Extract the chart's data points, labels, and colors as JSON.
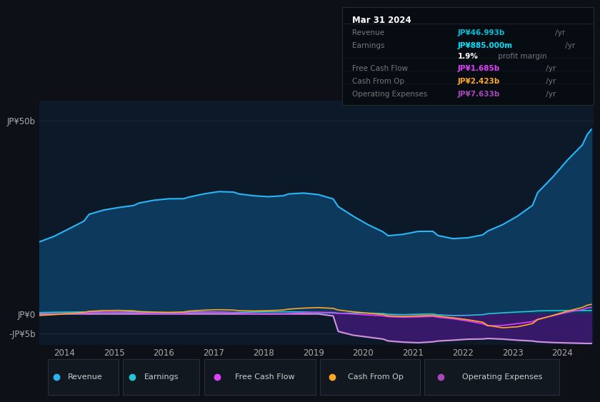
{
  "bg_color": "#0d1117",
  "plot_bg_color": "#0b1929",
  "title_box": {
    "date": "Mar 31 2024",
    "rows": [
      {
        "label": "Revenue",
        "value": "JP¥46.993b",
        "unit": " /yr",
        "value_color": "#00bcd4"
      },
      {
        "label": "Earnings",
        "value": "JP¥885.000m",
        "unit": " /yr",
        "value_color": "#00e5ff"
      },
      {
        "label": "",
        "value": "1.9%",
        "unit": " profit margin",
        "value_color": "#ffffff"
      },
      {
        "label": "Free Cash Flow",
        "value": "JP¥1.685b",
        "unit": " /yr",
        "value_color": "#e040fb"
      },
      {
        "label": "Cash From Op",
        "value": "JP¥2.423b",
        "unit": " /yr",
        "value_color": "#ffa726"
      },
      {
        "label": "Operating Expenses",
        "value": "JP¥7.633b",
        "unit": " /yr",
        "value_color": "#ab47bc"
      }
    ]
  },
  "legend": [
    {
      "label": "Revenue",
      "color": "#29b6f6"
    },
    {
      "label": "Earnings",
      "color": "#26c6da"
    },
    {
      "label": "Free Cash Flow",
      "color": "#e040fb"
    },
    {
      "label": "Cash From Op",
      "color": "#ffa726"
    },
    {
      "label": "Operating Expenses",
      "color": "#ab47bc"
    }
  ],
  "ylim": [
    -8,
    55
  ],
  "ytick_values": [
    50,
    0,
    -5
  ],
  "ytick_labels": [
    "JP¥50b",
    "JP¥0",
    "-JP¥5b"
  ],
  "xtick_positions": [
    2013.5,
    2014.5,
    2015.5,
    2016.5,
    2017.5,
    2018.5,
    2019.5,
    2020.5,
    2021.5,
    2022.5,
    2023.5
  ],
  "xtick_labels": [
    "2014",
    "2015",
    "2016",
    "2017",
    "2018",
    "2019",
    "2020",
    "2021",
    "2022",
    "2023",
    "2024"
  ],
  "series": {
    "x": [
      2013.0,
      2013.3,
      2013.6,
      2013.9,
      2014.0,
      2014.3,
      2014.6,
      2014.9,
      2015.0,
      2015.3,
      2015.6,
      2015.9,
      2016.0,
      2016.3,
      2016.6,
      2016.9,
      2017.0,
      2017.3,
      2017.6,
      2017.9,
      2018.0,
      2018.3,
      2018.6,
      2018.9,
      2019.0,
      2019.3,
      2019.6,
      2019.9,
      2020.0,
      2020.3,
      2020.6,
      2020.9,
      2021.0,
      2021.3,
      2021.6,
      2021.9,
      2022.0,
      2022.3,
      2022.6,
      2022.9,
      2023.0,
      2023.3,
      2023.6,
      2023.9,
      2024.0,
      2024.08
    ],
    "revenue": [
      18,
      20,
      22,
      24,
      26,
      27,
      27.5,
      28,
      28.5,
      29.5,
      30,
      29.5,
      30,
      31,
      32,
      31.5,
      31,
      30.5,
      30,
      30.5,
      31,
      31.5,
      31,
      30,
      28,
      25,
      23,
      21,
      19.5,
      20.5,
      21.5,
      22,
      20,
      19,
      19.5,
      20.5,
      21,
      23,
      25,
      28,
      31,
      35,
      40,
      44,
      47,
      48
    ],
    "earnings": [
      0.3,
      0.5,
      0.4,
      0.6,
      0.5,
      0.4,
      0.5,
      0.6,
      0.4,
      0.3,
      0.2,
      0.3,
      0.5,
      0.6,
      0.5,
      0.4,
      0.3,
      0.5,
      0.6,
      0.5,
      0.6,
      0.5,
      0.4,
      0.2,
      0.1,
      0.2,
      0.3,
      0.1,
      -0.1,
      -0.3,
      -0.1,
      0.2,
      -0.3,
      -0.5,
      -0.4,
      -0.2,
      0.0,
      0.3,
      0.5,
      0.7,
      0.8,
      0.85,
      0.87,
      0.88,
      0.885,
      0.9
    ],
    "free_cash_flow": [
      -0.3,
      -0.1,
      0.2,
      0.1,
      0.3,
      0.5,
      0.4,
      0.3,
      0.2,
      0.1,
      -0.1,
      0.1,
      0.3,
      0.4,
      0.5,
      0.3,
      0.2,
      0.0,
      -0.2,
      -0.1,
      0.1,
      0.3,
      0.5,
      0.4,
      0.2,
      0.0,
      -0.3,
      -0.5,
      -0.7,
      -1.0,
      -0.8,
      -0.5,
      -0.8,
      -1.2,
      -1.8,
      -2.5,
      -3.5,
      -3.0,
      -2.5,
      -2.0,
      -1.5,
      -0.5,
      0.5,
      1.2,
      1.685,
      1.7
    ],
    "cash_from_op": [
      -0.5,
      -0.2,
      0.1,
      0.4,
      0.7,
      0.9,
      1.0,
      0.8,
      0.6,
      0.5,
      0.3,
      0.5,
      0.7,
      1.0,
      1.2,
      1.0,
      0.8,
      0.7,
      0.8,
      1.0,
      1.2,
      1.5,
      1.8,
      1.5,
      1.0,
      0.5,
      0.2,
      -0.2,
      -0.5,
      -0.8,
      -0.5,
      -0.2,
      -0.5,
      -1.0,
      -1.5,
      -2.0,
      -3.0,
      -4.0,
      -3.5,
      -2.5,
      -1.5,
      -0.5,
      0.8,
      1.8,
      2.423,
      2.5
    ],
    "operating_expenses": [
      0.0,
      0.0,
      0.0,
      0.0,
      0.0,
      0.0,
      0.0,
      0.0,
      0.0,
      0.0,
      0.0,
      0.0,
      0.0,
      0.0,
      0.0,
      0.0,
      0.0,
      0.0,
      0.0,
      0.0,
      0.0,
      0.0,
      0.0,
      0.0,
      -5.0,
      -5.5,
      -6.0,
      -6.5,
      -7.0,
      -7.3,
      -7.5,
      -7.2,
      -7.0,
      -6.8,
      -6.5,
      -6.5,
      -6.3,
      -6.5,
      -6.8,
      -7.0,
      -7.2,
      -7.4,
      -7.5,
      -7.6,
      -7.633,
      -7.633
    ]
  }
}
